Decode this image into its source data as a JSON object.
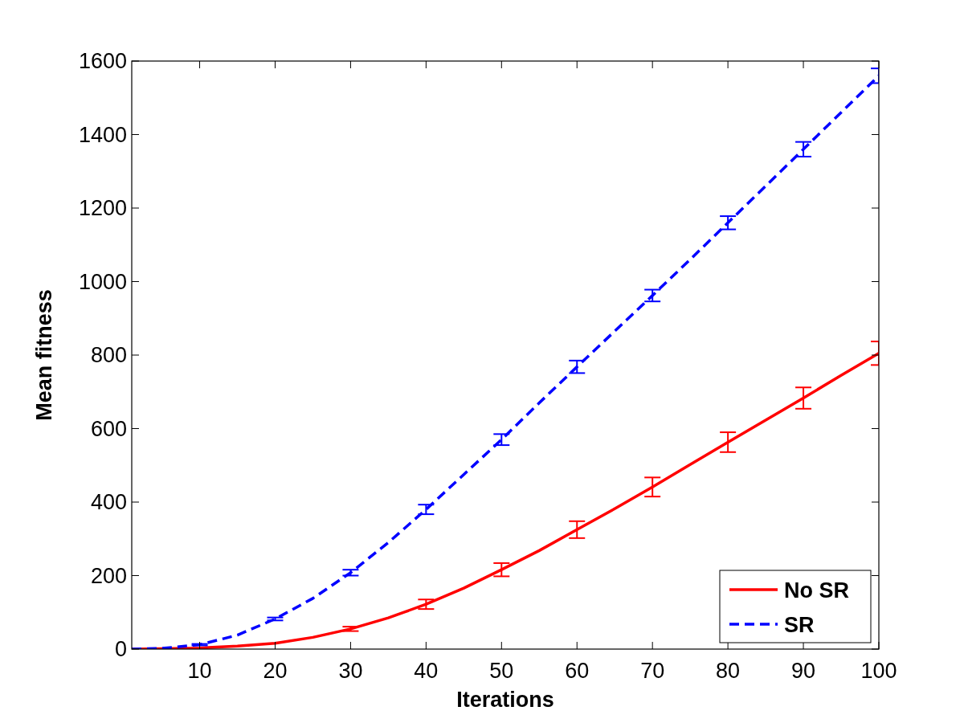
{
  "chart_data": {
    "type": "line",
    "xlabel": "Iterations",
    "ylabel": "Mean fitness",
    "xlim": [
      1,
      100
    ],
    "ylim": [
      0,
      1600
    ],
    "xticks": [
      10,
      20,
      30,
      40,
      50,
      60,
      70,
      80,
      90,
      100
    ],
    "yticks": [
      0,
      200,
      400,
      600,
      800,
      1000,
      1200,
      1400,
      1600
    ],
    "grid": false,
    "legend": "bottom right",
    "marker": "none",
    "series": [
      {
        "name": "No SR",
        "color": "#ff0000",
        "line_style": "solid",
        "x": [
          1,
          5,
          10,
          15,
          20,
          25,
          30,
          35,
          40,
          45,
          50,
          55,
          60,
          65,
          70,
          75,
          80,
          85,
          90,
          95,
          100
        ],
        "values": [
          0,
          1,
          3,
          8,
          16,
          32,
          55,
          85,
          122,
          166,
          216,
          268,
          325,
          382,
          441,
          502,
          563,
          623,
          683,
          745,
          805
        ],
        "errors": [
          null,
          null,
          null,
          null,
          null,
          null,
          6,
          null,
          13,
          null,
          18,
          null,
          23,
          null,
          26,
          null,
          27,
          null,
          29,
          null,
          32
        ]
      },
      {
        "name": "SR",
        "color": "#0000ff",
        "line_style": "dashed",
        "x": [
          1,
          5,
          10,
          15,
          20,
          25,
          30,
          35,
          40,
          45,
          50,
          55,
          60,
          65,
          70,
          75,
          80,
          85,
          90,
          95,
          100
        ],
        "values": [
          0,
          2,
          12,
          38,
          82,
          138,
          208,
          290,
          380,
          475,
          570,
          670,
          768,
          865,
          962,
          1060,
          1160,
          1260,
          1360,
          1460,
          1560
        ],
        "errors": [
          null,
          null,
          2,
          null,
          4,
          null,
          8,
          null,
          13,
          null,
          15,
          null,
          17,
          null,
          16,
          null,
          18,
          null,
          20,
          null,
          20
        ]
      }
    ]
  }
}
